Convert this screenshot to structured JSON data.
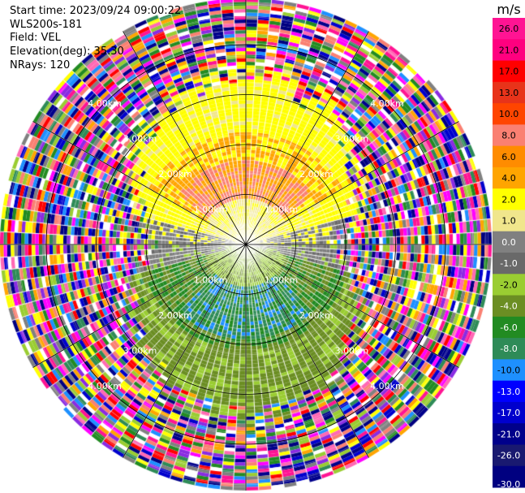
{
  "header": {
    "start_time": "Start time: 2023/09/24 09:00:22",
    "instrument": "WLS200s-181",
    "field": "Field: VEL",
    "elevation": "Elevation(deg): 35.30",
    "nrays": "NRays: 120"
  },
  "colorbar": {
    "unit": "m/s",
    "ticks": [
      "26.0",
      "21.0",
      "17.0",
      "13.0",
      "10.0",
      "8.0",
      "6.0",
      "4.0",
      "2.0",
      "1.0",
      "0.0",
      "-1.0",
      "-2.0",
      "-4.0",
      "-6.0",
      "-8.0",
      "-10.0",
      "-13.0",
      "-17.0",
      "-21.0",
      "-26.0",
      "-30.0"
    ],
    "colors": [
      "#ff1493",
      "#ff007f",
      "#ff0000",
      "#e8331a",
      "#ff4500",
      "#fa8072",
      "#ff8c00",
      "#ffa500",
      "#ffff00",
      "#f0e68c",
      "#808080",
      "#696969",
      "#9acd32",
      "#6b8e23",
      "#228b22",
      "#2e8b57",
      "#1e90ff",
      "#0000ff",
      "#0000cd",
      "#00008b",
      "#191970",
      "#000080"
    ]
  },
  "chart_data": {
    "type": "heatmap",
    "title": "",
    "projection": "PPI polar scan",
    "field": "VEL",
    "units": "m/s",
    "nrays": 120,
    "range_rings": [
      "1.00km",
      "2.00km",
      "3.00km",
      "4.00km"
    ],
    "radial_spokes": 12,
    "color_scale": {
      "min": -30.0,
      "max": 26.0,
      "levels": [
        26.0,
        21.0,
        17.0,
        13.0,
        10.0,
        8.0,
        6.0,
        4.0,
        2.0,
        1.0,
        0.0,
        -1.0,
        -2.0,
        -4.0,
        -6.0,
        -8.0,
        -10.0,
        -13.0,
        -17.0,
        -21.0,
        -26.0,
        -30.0
      ]
    },
    "pattern": {
      "north_sector": "positive velocities 1 to 8 m/s (yellow / orange)",
      "south_sector": "negative velocities -1 to -8 m/s (olive / green / teal)",
      "east_west": "near 0 m/s (grey)",
      "outer_ranges": "noise (random colors)"
    }
  }
}
